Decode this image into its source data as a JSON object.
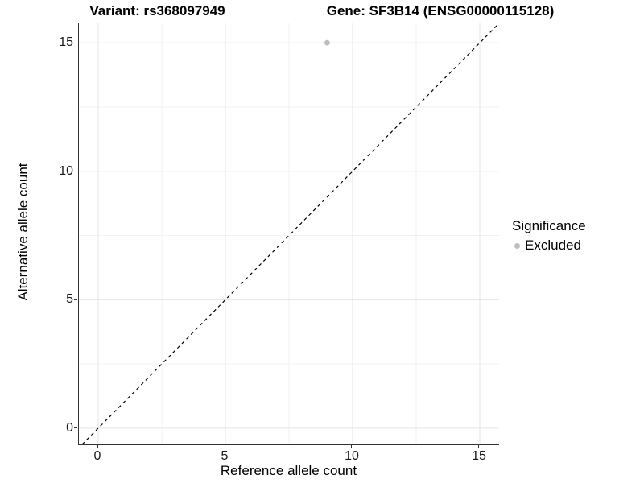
{
  "chart_data": {
    "type": "scatter",
    "title_left": "Variant: rs368097949",
    "title_right": "Gene: SF3B14 (ENSG00000115128)",
    "xlabel": "Reference allele count",
    "ylabel": "Alternative allele count",
    "xlim": [
      -0.76,
      15.76
    ],
    "ylim": [
      -0.63,
      15.79
    ],
    "xticks": [
      0,
      5,
      10,
      15
    ],
    "yticks": [
      0,
      5,
      10,
      15
    ],
    "grid": "major and minor, minor at midpoints (2.5 steps)",
    "identity_line": {
      "equation": "y = x",
      "style": "dashed",
      "color": "#000000"
    },
    "points": [
      {
        "x": 9,
        "y": 15,
        "significance": "Excluded"
      }
    ],
    "point_color": "#bebebe",
    "legend": {
      "title": "Significance",
      "position": "right",
      "items": [
        {
          "label": "Excluded",
          "marker": "circle",
          "color": "#bebebe"
        }
      ]
    },
    "colors": {
      "axis_line": "#333333",
      "tick_label": "#1a1a1a",
      "grid_major": "#e5e5e5",
      "grid_minor": "#f2f2f2",
      "background": "#ffffff"
    }
  }
}
